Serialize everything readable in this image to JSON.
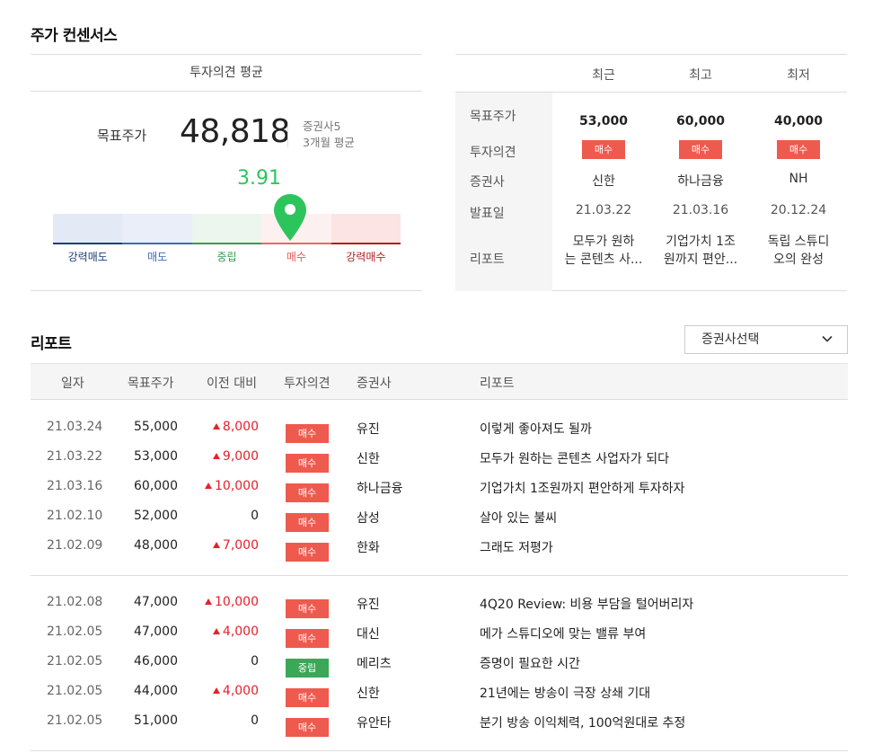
{
  "consensus": {
    "title": "주가 컨센서스",
    "avg_header": "투자의견 평균",
    "target_label": "목표주가",
    "target_value": "48,818",
    "meta_firms": "증권사5",
    "meta_period": "3개월 평균",
    "score": "3.91",
    "gauge_score": 3.91,
    "gauge_labels": [
      "강력매도",
      "매도",
      "중립",
      "매수",
      "강력매수"
    ],
    "table": {
      "columns": [
        "최근",
        "최고",
        "최저"
      ],
      "row_labels": [
        "목표주가",
        "투자의견",
        "증권사",
        "발표일",
        "리포트"
      ],
      "cols": [
        {
          "price": "53,000",
          "opinion": "매수",
          "firm": "신한",
          "date": "21.03.22",
          "report_l1": "모두가 원하",
          "report_l2": "는 콘텐츠 사..."
        },
        {
          "price": "60,000",
          "opinion": "매수",
          "firm": "하나금융",
          "date": "21.03.16",
          "report_l1": "기업가치 1조",
          "report_l2": "원까지 편안..."
        },
        {
          "price": "40,000",
          "opinion": "매수",
          "firm": "NH",
          "date": "20.12.24",
          "report_l1": "독립 스튜디",
          "report_l2": "오의 완성"
        }
      ]
    }
  },
  "reports": {
    "title": "리포트",
    "dropdown_label": "증권사선택",
    "headers": [
      "일자",
      "목표주가",
      "이전 대비",
      "투자의견",
      "증권사",
      "리포트"
    ],
    "rows": [
      {
        "date": "21.03.24",
        "price": "55,000",
        "change": "8,000",
        "dir": "up",
        "opinion": "매수",
        "firm": "유진",
        "title": "이렇게 좋아져도 될까"
      },
      {
        "date": "21.03.22",
        "price": "53,000",
        "change": "9,000",
        "dir": "up",
        "opinion": "매수",
        "firm": "신한",
        "title": "모두가 원하는 콘텐츠 사업자가 되다"
      },
      {
        "date": "21.03.16",
        "price": "60,000",
        "change": "10,000",
        "dir": "up",
        "opinion": "매수",
        "firm": "하나금융",
        "title": "기업가치 1조원까지 편안하게 투자하자"
      },
      {
        "date": "21.02.10",
        "price": "52,000",
        "change": "0",
        "dir": "flat",
        "opinion": "매수",
        "firm": "삼성",
        "title": "살아 있는 불씨"
      },
      {
        "date": "21.02.09",
        "price": "48,000",
        "change": "7,000",
        "dir": "up",
        "opinion": "매수",
        "firm": "한화",
        "title": "그래도 저평가"
      },
      {
        "date": "21.02.08",
        "price": "47,000",
        "change": "10,000",
        "dir": "up",
        "opinion": "매수",
        "firm": "유진",
        "title": "4Q20 Review: 비용 부담을 털어버리자"
      },
      {
        "date": "21.02.05",
        "price": "47,000",
        "change": "4,000",
        "dir": "up",
        "opinion": "매수",
        "firm": "대신",
        "title": "메가 스튜디오에 맞는 밸류 부여"
      },
      {
        "date": "21.02.05",
        "price": "46,000",
        "change": "0",
        "dir": "flat",
        "opinion": "중립",
        "firm": "메리츠",
        "title": "증명이 필요한 시간"
      },
      {
        "date": "21.02.05",
        "price": "44,000",
        "change": "4,000",
        "dir": "up",
        "opinion": "매수",
        "firm": "신한",
        "title": "21년에는 방송이 극장 상쇄 기대"
      },
      {
        "date": "21.02.05",
        "price": "51,000",
        "change": "0",
        "dir": "flat",
        "opinion": "매수",
        "firm": "유안타",
        "title": "분기 방송 이익체력, 100억원대로 추정"
      }
    ]
  },
  "colors": {
    "buy": "#ef5a4f",
    "neutral": "#3aa857",
    "up": "#e8202a",
    "score": "#2cc55c"
  }
}
